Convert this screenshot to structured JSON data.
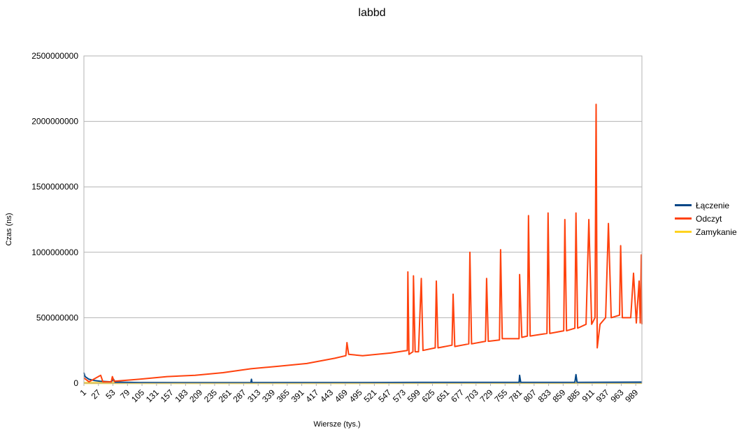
{
  "chart_data": {
    "type": "line",
    "title": "labbd",
    "xlabel": "Wiersze (tys.)",
    "ylabel": "Czas (ns)",
    "ylim": [
      0,
      2500000000
    ],
    "y_ticks": [
      "0",
      "500000000",
      "1000000000",
      "1500000000",
      "2000000000",
      "2500000000"
    ],
    "x_tick_labels": [
      "1",
      "27",
      "53",
      "79",
      "105",
      "131",
      "157",
      "183",
      "209",
      "235",
      "261",
      "287",
      "313",
      "339",
      "365",
      "391",
      "417",
      "443",
      "469",
      "495",
      "521",
      "547",
      "573",
      "599",
      "625",
      "651",
      "677",
      "703",
      "729",
      "755",
      "781",
      "807",
      "833",
      "859",
      "885",
      "911",
      "937",
      "963",
      "989"
    ],
    "x_range": [
      1,
      1000
    ],
    "grid": "horizontal",
    "legend_position": "right",
    "series": [
      {
        "name": "Łączenie",
        "color": "#004586",
        "points": [
          [
            1,
            80000000
          ],
          [
            3,
            50000000
          ],
          [
            10,
            30000000
          ],
          [
            20,
            20000000
          ],
          [
            30,
            15000000
          ],
          [
            50,
            10000000
          ],
          [
            54,
            30000000
          ],
          [
            57,
            8000000
          ],
          [
            100,
            5000000
          ],
          [
            200,
            4000000
          ],
          [
            300,
            5000000
          ],
          [
            301,
            30000000
          ],
          [
            302,
            5000000
          ],
          [
            500,
            5000000
          ],
          [
            600,
            6000000
          ],
          [
            780,
            6000000
          ],
          [
            781,
            60000000
          ],
          [
            783,
            6000000
          ],
          [
            880,
            6000000
          ],
          [
            882,
            65000000
          ],
          [
            884,
            6000000
          ],
          [
            1000,
            8000000
          ]
        ]
      },
      {
        "name": "Odczyt",
        "color": "#ff420e",
        "points": [
          [
            1,
            40000000
          ],
          [
            10,
            10000000
          ],
          [
            31,
            60000000
          ],
          [
            35,
            10000000
          ],
          [
            50,
            10000000
          ],
          [
            52,
            50000000
          ],
          [
            55,
            15000000
          ],
          [
            100,
            30000000
          ],
          [
            150,
            50000000
          ],
          [
            200,
            60000000
          ],
          [
            250,
            80000000
          ],
          [
            300,
            110000000
          ],
          [
            350,
            130000000
          ],
          [
            400,
            150000000
          ],
          [
            450,
            190000000
          ],
          [
            470,
            210000000
          ],
          [
            472,
            310000000
          ],
          [
            475,
            220000000
          ],
          [
            500,
            210000000
          ],
          [
            550,
            230000000
          ],
          [
            580,
            250000000
          ],
          [
            581,
            850000000
          ],
          [
            583,
            220000000
          ],
          [
            590,
            240000000
          ],
          [
            591,
            820000000
          ],
          [
            594,
            240000000
          ],
          [
            600,
            240000000
          ],
          [
            605,
            800000000
          ],
          [
            608,
            250000000
          ],
          [
            630,
            270000000
          ],
          [
            632,
            780000000
          ],
          [
            635,
            270000000
          ],
          [
            660,
            290000000
          ],
          [
            662,
            680000000
          ],
          [
            665,
            280000000
          ],
          [
            690,
            300000000
          ],
          [
            692,
            1000000000
          ],
          [
            695,
            300000000
          ],
          [
            720,
            320000000
          ],
          [
            722,
            800000000
          ],
          [
            725,
            320000000
          ],
          [
            745,
            330000000
          ],
          [
            747,
            1020000000
          ],
          [
            750,
            340000000
          ],
          [
            780,
            340000000
          ],
          [
            781,
            830000000
          ],
          [
            785,
            350000000
          ],
          [
            795,
            360000000
          ],
          [
            797,
            1280000000
          ],
          [
            800,
            360000000
          ],
          [
            830,
            380000000
          ],
          [
            832,
            1300000000
          ],
          [
            835,
            380000000
          ],
          [
            860,
            400000000
          ],
          [
            862,
            1250000000
          ],
          [
            865,
            400000000
          ],
          [
            880,
            420000000
          ],
          [
            882,
            1300000000
          ],
          [
            885,
            420000000
          ],
          [
            900,
            450000000
          ],
          [
            905,
            1250000000
          ],
          [
            910,
            450000000
          ],
          [
            916,
            500000000
          ],
          [
            918,
            2130000000
          ],
          [
            920,
            270000000
          ],
          [
            925,
            450000000
          ],
          [
            935,
            500000000
          ],
          [
            940,
            1220000000
          ],
          [
            945,
            500000000
          ],
          [
            960,
            520000000
          ],
          [
            962,
            1050000000
          ],
          [
            965,
            500000000
          ],
          [
            980,
            500000000
          ],
          [
            985,
            840000000
          ],
          [
            990,
            460000000
          ],
          [
            995,
            780000000
          ],
          [
            997,
            460000000
          ],
          [
            999,
            980000000
          ],
          [
            1000,
            450000000
          ]
        ]
      },
      {
        "name": "Zamykanie",
        "color": "#ffd320",
        "points": [
          [
            1,
            1000000
          ],
          [
            1000,
            2000000
          ]
        ]
      }
    ]
  }
}
